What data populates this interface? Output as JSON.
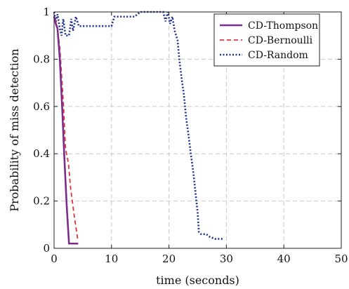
{
  "chart_data": {
    "type": "line",
    "title": "",
    "xlabel": "time (seconds)",
    "ylabel": "Probability of miss detection",
    "xlim": [
      0,
      50
    ],
    "ylim": [
      0,
      1
    ],
    "xticks": [
      0,
      10,
      20,
      30,
      40,
      50
    ],
    "yticks": [
      0,
      0.2,
      0.4,
      0.6,
      0.8,
      1
    ],
    "xtick_labels": [
      "0",
      "10",
      "20",
      "30",
      "40",
      "50"
    ],
    "ytick_labels": [
      "0",
      "0.2",
      "0.4",
      "0.6",
      "0.8",
      "1"
    ],
    "grid": true,
    "legend_position": "top-right",
    "series": [
      {
        "name": "CD-Thompson",
        "color": "#7b2d8e",
        "dash": "solid",
        "points": [
          [
            0,
            0.98
          ],
          [
            0.3,
            0.95
          ],
          [
            0.6,
            0.93
          ],
          [
            1.0,
            0.8
          ],
          [
            1.4,
            0.6
          ],
          [
            1.8,
            0.38
          ],
          [
            2.2,
            0.18
          ],
          [
            2.6,
            0.02
          ],
          [
            3.0,
            0.02
          ],
          [
            4.2,
            0.02
          ]
        ]
      },
      {
        "name": "CD-Bernoulli",
        "color": "#e0343a",
        "dash": "dashed",
        "points": [
          [
            0,
            0.97
          ],
          [
            0.4,
            0.96
          ],
          [
            1.0,
            0.85
          ],
          [
            1.6,
            0.62
          ],
          [
            2.0,
            0.42
          ],
          [
            2.5,
            0.36
          ],
          [
            2.9,
            0.25
          ],
          [
            3.5,
            0.14
          ],
          [
            4.1,
            0.04
          ]
        ]
      },
      {
        "name": "CD-Random",
        "color": "#1f2f8f",
        "dash": "dotted",
        "points": [
          [
            0,
            1.0
          ],
          [
            0.3,
            0.96
          ],
          [
            0.6,
            0.99
          ],
          [
            1.0,
            0.93
          ],
          [
            1.3,
            0.9
          ],
          [
            1.6,
            0.97
          ],
          [
            2.0,
            0.9
          ],
          [
            2.6,
            0.9
          ],
          [
            3.0,
            0.97
          ],
          [
            3.3,
            0.92
          ],
          [
            3.8,
            0.98
          ],
          [
            4.3,
            0.94
          ],
          [
            6.0,
            0.94
          ],
          [
            8.0,
            0.94
          ],
          [
            10.0,
            0.94
          ],
          [
            10.5,
            0.98
          ],
          [
            14.0,
            0.98
          ],
          [
            15.0,
            1.0
          ],
          [
            19.0,
            1.0
          ],
          [
            19.4,
            0.96
          ],
          [
            19.8,
            1.0
          ],
          [
            20.2,
            0.95
          ],
          [
            20.6,
            0.98
          ],
          [
            21.0,
            0.92
          ],
          [
            21.5,
            0.88
          ],
          [
            21.8,
            0.8
          ],
          [
            22.2,
            0.72
          ],
          [
            22.6,
            0.65
          ],
          [
            23.0,
            0.55
          ],
          [
            23.4,
            0.48
          ],
          [
            23.8,
            0.4
          ],
          [
            24.2,
            0.33
          ],
          [
            24.6,
            0.24
          ],
          [
            25.0,
            0.15
          ],
          [
            25.2,
            0.07
          ],
          [
            25.6,
            0.06
          ],
          [
            26.5,
            0.06
          ],
          [
            27.0,
            0.05
          ],
          [
            28.0,
            0.04
          ],
          [
            29.5,
            0.04
          ]
        ]
      }
    ]
  }
}
